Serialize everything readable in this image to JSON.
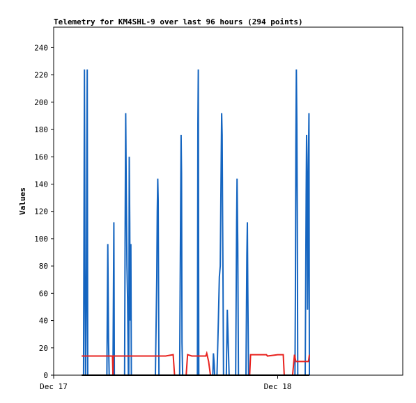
{
  "chart_data": {
    "type": "line",
    "title": "Telemetry for KM4SHL-9 over last 96 hours (294 points)",
    "xlabel": "",
    "ylabel": "Values",
    "ylim": [
      0,
      255
    ],
    "yticks": [
      0,
      20,
      40,
      60,
      80,
      100,
      120,
      140,
      160,
      180,
      200,
      220,
      240
    ],
    "xlim": [
      0,
      37.4
    ],
    "xticks": [
      {
        "x": 0,
        "label": "Dec 17"
      },
      {
        "x": 24,
        "label": "Dec 18"
      }
    ],
    "x_unit": "hours since Dec 17 00:00",
    "grid": false,
    "legend": "none",
    "colors": {
      "series_blue": "#1565c0",
      "series_red": "#e8221e",
      "series_black": "#000000",
      "axis": "#000000",
      "background": "#ffffff"
    },
    "series": [
      {
        "color": "#1565c0",
        "points": [
          [
            3.2,
            0
          ],
          [
            3.3,
            224
          ],
          [
            3.35,
            80
          ],
          [
            3.42,
            0
          ],
          [
            3.5,
            55
          ],
          [
            3.55,
            168
          ],
          [
            3.6,
            224
          ],
          [
            3.65,
            0
          ],
          [
            5.7,
            0
          ],
          [
            5.75,
            48
          ],
          [
            5.8,
            96
          ],
          [
            5.88,
            24
          ],
          [
            5.95,
            0
          ],
          [
            6.35,
            0
          ],
          [
            6.45,
            112
          ],
          [
            6.5,
            0
          ],
          [
            7.6,
            0
          ],
          [
            7.65,
            96
          ],
          [
            7.72,
            192
          ],
          [
            7.78,
            136
          ],
          [
            7.85,
            80
          ],
          [
            7.92,
            56
          ],
          [
            8.0,
            0
          ],
          [
            8.05,
            0
          ],
          [
            8.1,
            160
          ],
          [
            8.15,
            112
          ],
          [
            8.2,
            40
          ],
          [
            8.27,
            96
          ],
          [
            8.32,
            0
          ],
          [
            10.9,
            0
          ],
          [
            11.05,
            72
          ],
          [
            11.1,
            120
          ],
          [
            11.15,
            144
          ],
          [
            11.2,
            128
          ],
          [
            11.28,
            0
          ],
          [
            13.5,
            0
          ],
          [
            13.6,
            120
          ],
          [
            13.65,
            176
          ],
          [
            13.7,
            148
          ],
          [
            13.75,
            24
          ],
          [
            13.82,
            0
          ],
          [
            15.4,
            0
          ],
          [
            15.45,
            184
          ],
          [
            15.5,
            224
          ],
          [
            15.55,
            0
          ],
          [
            17.05,
            0
          ],
          [
            17.12,
            16
          ],
          [
            17.2,
            8
          ],
          [
            17.25,
            0
          ],
          [
            17.5,
            0
          ],
          [
            17.65,
            40
          ],
          [
            17.75,
            72
          ],
          [
            17.85,
            80
          ],
          [
            17.9,
            120
          ],
          [
            17.95,
            160
          ],
          [
            18.0,
            192
          ],
          [
            18.05,
            176
          ],
          [
            18.1,
            112
          ],
          [
            18.15,
            64
          ],
          [
            18.2,
            0
          ],
          [
            18.5,
            0
          ],
          [
            18.55,
            24
          ],
          [
            18.6,
            48
          ],
          [
            18.7,
            24
          ],
          [
            18.8,
            0
          ],
          [
            19.5,
            0
          ],
          [
            19.6,
            112
          ],
          [
            19.65,
            144
          ],
          [
            19.72,
            96
          ],
          [
            19.8,
            0
          ],
          [
            20.6,
            0
          ],
          [
            20.7,
            88
          ],
          [
            20.75,
            112
          ],
          [
            20.8,
            64
          ],
          [
            20.88,
            0
          ],
          [
            25.85,
            0
          ],
          [
            25.9,
            56
          ],
          [
            25.95,
            168
          ],
          [
            26.0,
            224
          ],
          [
            26.05,
            184
          ],
          [
            26.1,
            120
          ],
          [
            26.15,
            0
          ],
          [
            26.95,
            0
          ],
          [
            27.05,
            132
          ],
          [
            27.1,
            176
          ],
          [
            27.15,
            144
          ],
          [
            27.2,
            48
          ],
          [
            27.25,
            88
          ],
          [
            27.3,
            160
          ],
          [
            27.35,
            192
          ],
          [
            27.4,
            0
          ]
        ]
      },
      {
        "color": "#e8221e",
        "points": [
          [
            3.0,
            14
          ],
          [
            6.3,
            14
          ],
          [
            6.35,
            0
          ],
          [
            6.4,
            14
          ],
          [
            7.6,
            14
          ],
          [
            12.0,
            14
          ],
          [
            12.8,
            15
          ],
          [
            12.95,
            0
          ],
          [
            14.2,
            0
          ],
          [
            14.35,
            15
          ],
          [
            14.8,
            14
          ],
          [
            16.3,
            14
          ],
          [
            16.4,
            16
          ],
          [
            16.6,
            10
          ],
          [
            16.8,
            0
          ],
          [
            21.0,
            0
          ],
          [
            21.1,
            15
          ],
          [
            22.8,
            15
          ],
          [
            22.9,
            14
          ],
          [
            24.0,
            15
          ],
          [
            24.6,
            15
          ],
          [
            24.7,
            0
          ],
          [
            25.6,
            0
          ],
          [
            25.8,
            15
          ],
          [
            25.95,
            10
          ],
          [
            27.3,
            10
          ],
          [
            27.4,
            15
          ]
        ]
      },
      {
        "color": "#000000",
        "points": [
          [
            3.0,
            0
          ],
          [
            27.4,
            0
          ]
        ]
      }
    ]
  }
}
